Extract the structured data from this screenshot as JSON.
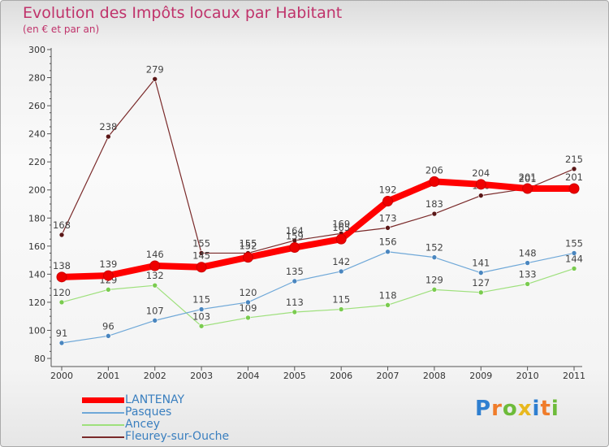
{
  "title": "Evolution des Impôts locaux par Habitant",
  "subtitle": "(en € et par an)",
  "brand": {
    "letters": [
      "P",
      "r",
      "o",
      "x",
      "i",
      "t",
      "i"
    ],
    "colors": [
      "#2f7fd0",
      "#f07c2a",
      "#6dbb3a",
      "#e8b81e",
      "#2f7fd0",
      "#f07c2a",
      "#6dbb3a"
    ]
  },
  "chart_data": {
    "type": "line",
    "title": "Evolution des Impôts locaux par Habitant",
    "subtitle": "(en € et par an)",
    "xlabel": "",
    "ylabel": "",
    "x": [
      "2000",
      "2001",
      "2002",
      "2003",
      "2004",
      "2005",
      "2006",
      "2007",
      "2008",
      "2009",
      "2010",
      "2011"
    ],
    "ylim": [
      80,
      300
    ],
    "yticks": [
      "80",
      "100",
      "120",
      "140",
      "160",
      "180",
      "200",
      "220",
      "240",
      "260",
      "280",
      "300"
    ],
    "grid": false,
    "legend_position": "bottom-left",
    "series": [
      {
        "name": "Fleurey-sur-Ouche",
        "color": "#7a2a2a",
        "marker": "#5a1717",
        "width": 1.2,
        "radius": 3,
        "values": [
          168,
          238,
          279,
          155,
          155,
          164,
          169,
          173,
          183,
          196,
          201,
          215
        ],
        "labels": [
          "168",
          "238",
          "279",
          "155",
          "155",
          "164",
          "169",
          "173",
          "183",
          "196",
          "201",
          "215"
        ]
      },
      {
        "name": "Ancey",
        "color": "#9ee07c",
        "marker": "#7acb4f",
        "width": 1.2,
        "radius": 3,
        "values": [
          120,
          129,
          132,
          103,
          109,
          113,
          115,
          118,
          129,
          127,
          133,
          144
        ],
        "labels": [
          "120",
          "129",
          "132",
          "103",
          "109",
          "113",
          "115",
          "118",
          "129",
          "127",
          "133",
          "144"
        ]
      },
      {
        "name": "Pasques",
        "color": "#6fa8d8",
        "marker": "#4a86bf",
        "width": 1.2,
        "radius": 3,
        "values": [
          91,
          96,
          107,
          115,
          120,
          135,
          142,
          156,
          152,
          141,
          148,
          155
        ],
        "labels": [
          "91",
          "96",
          "107",
          "115",
          "120",
          "135",
          "142",
          "156",
          "152",
          "141",
          "148",
          "155"
        ]
      },
      {
        "name": "LANTENAY",
        "color": "#ff0000",
        "marker": "#ee0000",
        "width": 8,
        "radius": 6,
        "values": [
          138,
          139,
          146,
          145,
          152,
          159,
          165,
          192,
          206,
          204,
          201,
          201
        ],
        "labels": [
          "138",
          "139",
          "146",
          "145",
          "152",
          "159",
          "165",
          "192",
          "206",
          "204",
          "201",
          "201"
        ]
      }
    ],
    "legend": [
      "LANTENAY",
      "Pasques",
      "Ancey",
      "Fleurey-sur-Ouche"
    ]
  }
}
